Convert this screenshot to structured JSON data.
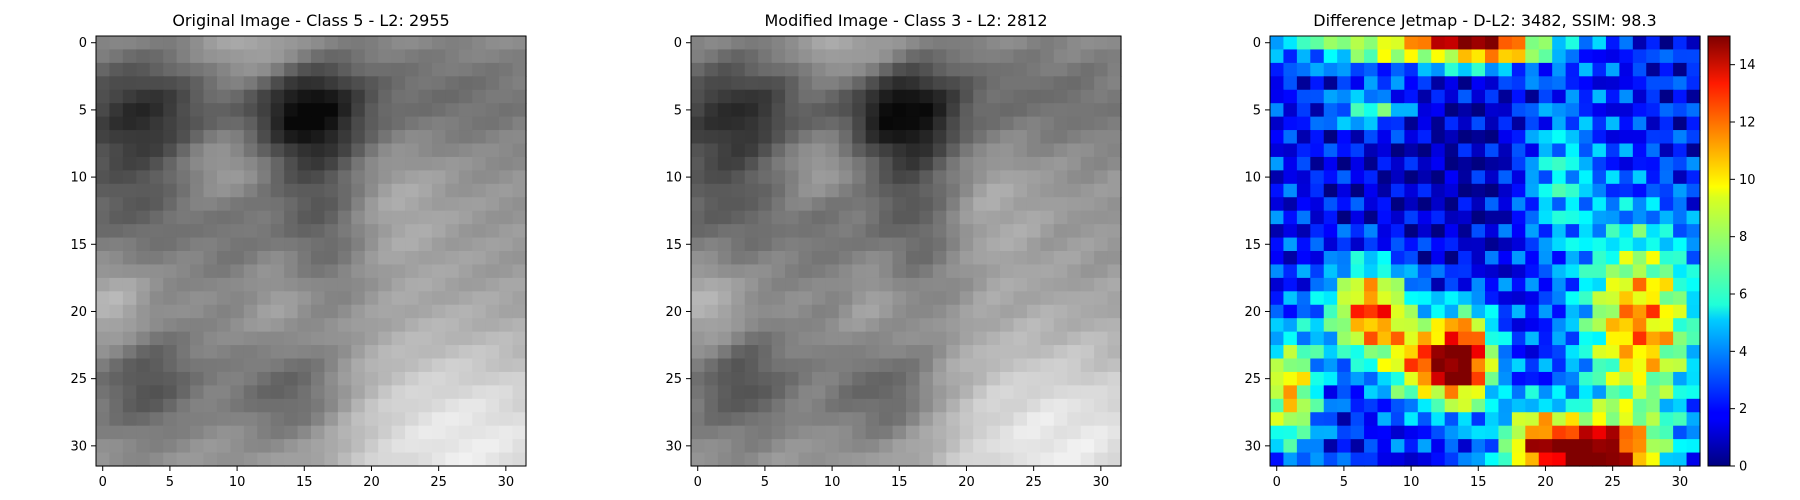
{
  "chart_data": [
    {
      "type": "heatmap",
      "title": "Original Image - Class 5 - L2: 2955",
      "title_color": "#000000",
      "colormap": "gray",
      "grid": false,
      "xlim": [
        -0.5,
        31.5
      ],
      "ylim": [
        31.5,
        -0.5
      ],
      "xticks": [
        0,
        5,
        10,
        15,
        20,
        25,
        30
      ],
      "yticks": [
        0,
        5,
        10,
        15,
        20,
        25,
        30
      ]
    },
    {
      "type": "heatmap",
      "title": "Modified Image - Class 3 - L2: 2812",
      "title_color": "#ff0000",
      "colormap": "gray",
      "grid": false,
      "xlim": [
        -0.5,
        31.5
      ],
      "ylim": [
        31.5,
        -0.5
      ],
      "xticks": [
        0,
        5,
        10,
        15,
        20,
        25,
        30
      ],
      "yticks": [
        0,
        5,
        10,
        15,
        20,
        25,
        30
      ]
    },
    {
      "type": "heatmap",
      "title": "Difference Jetmap - D-L2: 3482, SSIM: 98.3",
      "title_color": "#000000",
      "colormap": "jet",
      "grid": false,
      "xlim": [
        -0.5,
        31.5
      ],
      "ylim": [
        31.5,
        -0.5
      ],
      "xticks": [
        0,
        5,
        10,
        15,
        20,
        25,
        30
      ],
      "yticks": [
        0,
        5,
        10,
        15,
        20,
        25,
        30
      ],
      "colorbar": {
        "range": [
          0,
          15
        ],
        "ticks": [
          0,
          2,
          4,
          6,
          8,
          10,
          12,
          14
        ]
      }
    }
  ]
}
